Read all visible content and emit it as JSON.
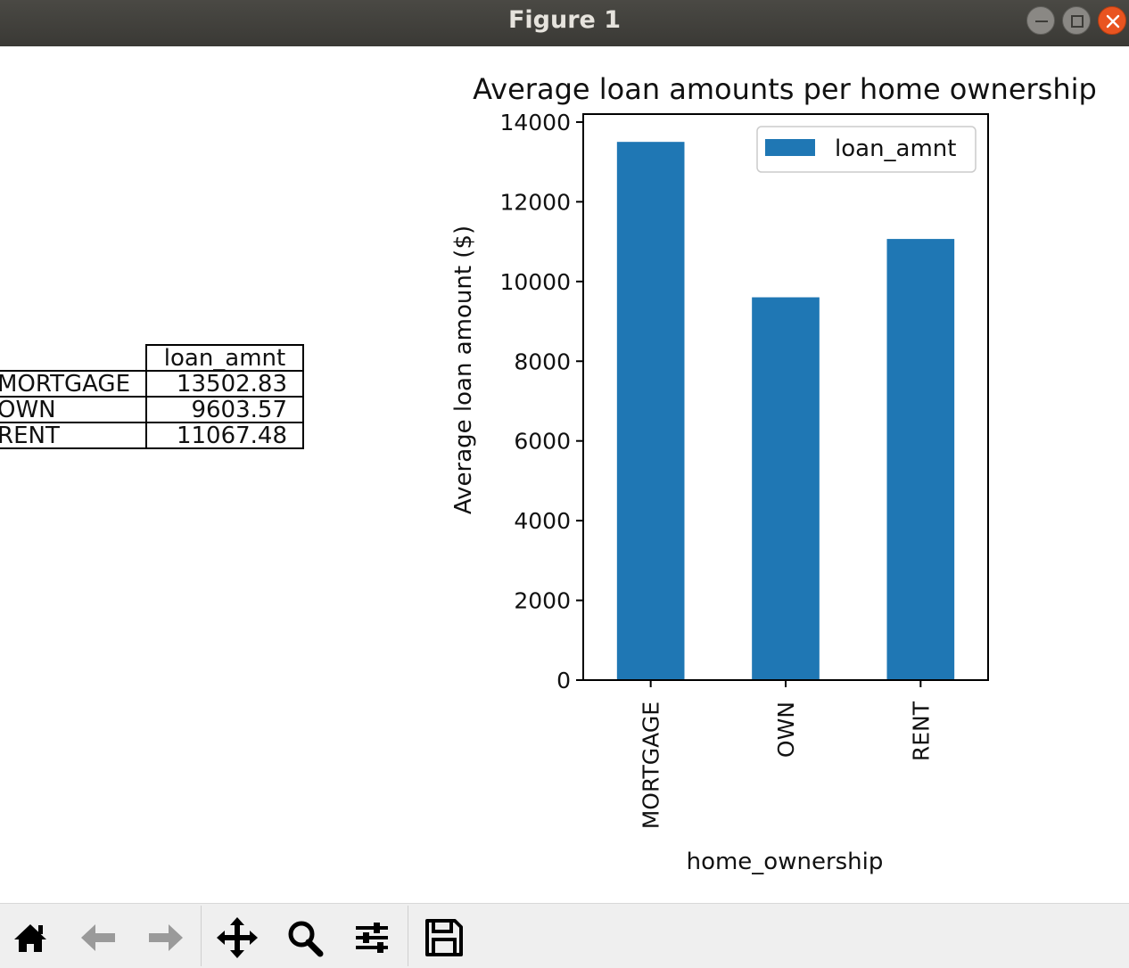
{
  "window": {
    "title": "Figure 1",
    "controls": [
      "minimize-icon",
      "maximize-icon",
      "close-icon"
    ]
  },
  "table": {
    "header": "loan_amnt",
    "rows": [
      {
        "label": "MORTGAGE",
        "value": "13502.83"
      },
      {
        "label": "OWN",
        "value": "9603.57"
      },
      {
        "label": "RENT",
        "value": "11067.48"
      }
    ]
  },
  "chart_data": {
    "type": "bar",
    "title": "Average loan amounts per home ownership",
    "xlabel": "home_ownership",
    "ylabel": "Average loan amount ($)",
    "categories": [
      "MORTGAGE",
      "OWN",
      "RENT"
    ],
    "series": [
      {
        "name": "loan_amnt",
        "values": [
          13502.83,
          9603.57,
          11067.48
        ]
      }
    ],
    "ylim": [
      0,
      14200
    ],
    "yticks": [
      0,
      2000,
      4000,
      6000,
      8000,
      10000,
      12000,
      14000
    ],
    "legend": "upper right",
    "grid": false,
    "bar_color": "#1f77b4"
  },
  "toolbar": {
    "tools": [
      "home-icon",
      "back-arrow-icon",
      "forward-arrow-icon",
      "pan-icon",
      "zoom-icon",
      "configure-subplots-icon",
      "save-icon"
    ]
  }
}
